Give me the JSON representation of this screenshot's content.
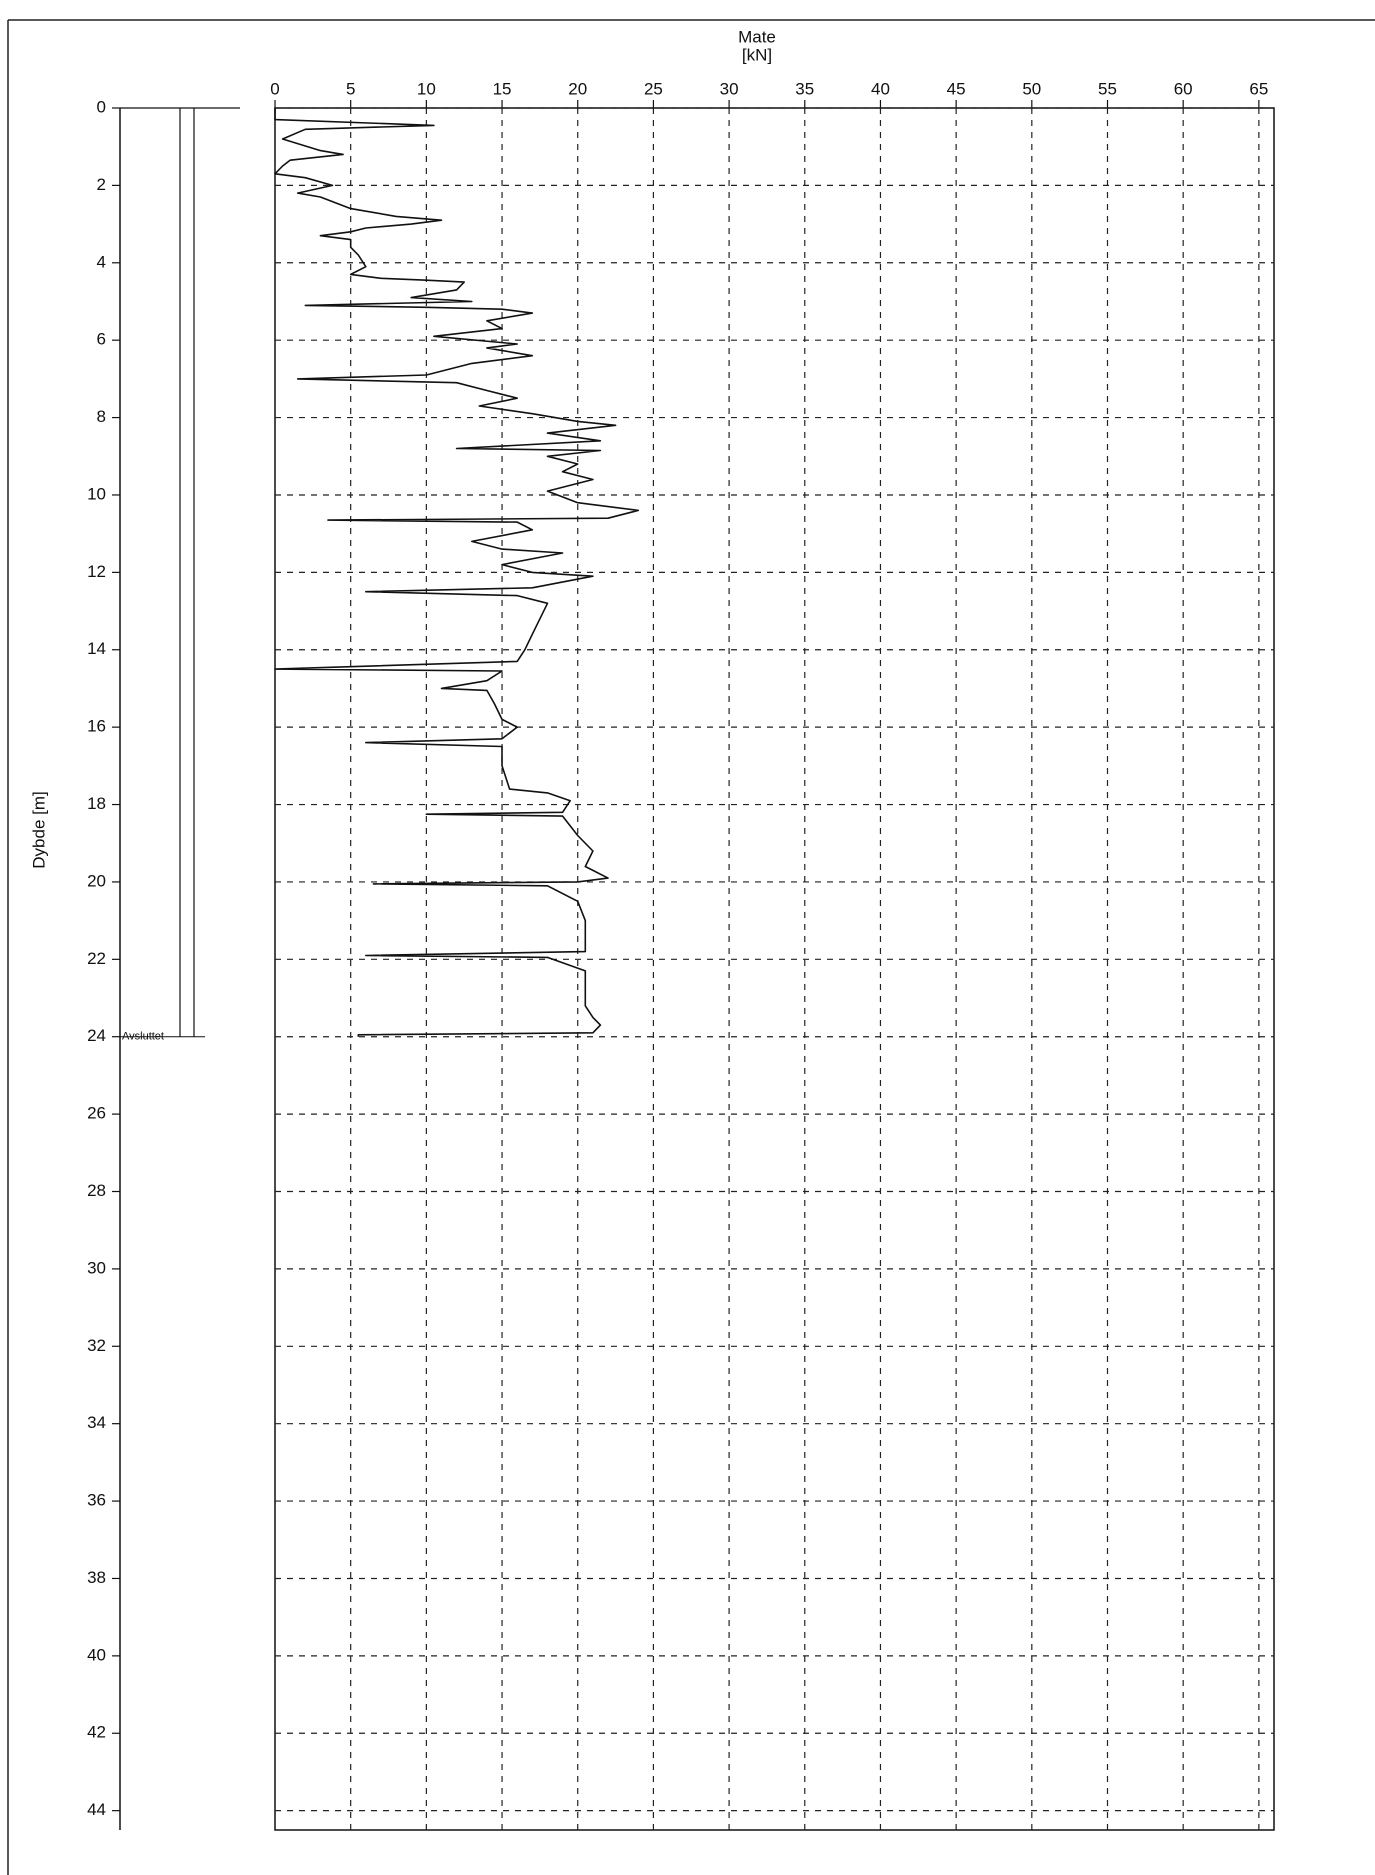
{
  "chart_data": {
    "type": "line",
    "title": "Mate",
    "x_unit": "[kN]",
    "y_label": "Dybde [m]",
    "annotation": "Avsluttet",
    "end_depth": 24,
    "color": "#111111",
    "grid": true,
    "y_inverted": true,
    "xlim": [
      0,
      66
    ],
    "xticks": [
      0,
      5,
      10,
      15,
      20,
      25,
      30,
      35,
      40,
      45,
      50,
      55,
      60,
      65
    ],
    "ylim": [
      0,
      44.5
    ],
    "yticks": [
      0,
      2,
      4,
      6,
      8,
      10,
      12,
      14,
      16,
      18,
      20,
      22,
      24,
      26,
      28,
      30,
      32,
      34,
      36,
      38,
      40,
      42,
      44
    ],
    "depth": [
      0,
      0.3,
      0.45,
      0.55,
      0.8,
      1.1,
      1.2,
      1.35,
      1.5,
      1.7,
      1.8,
      2.0,
      2.2,
      2.3,
      2.6,
      2.8,
      2.9,
      3.0,
      3.1,
      3.2,
      3.3,
      3.4,
      3.6,
      3.8,
      4.1,
      4.3,
      4.4,
      4.45,
      4.5,
      4.7,
      4.9,
      5.0,
      5.1,
      5.15,
      5.2,
      5.3,
      5.5,
      5.7,
      5.9,
      6.1,
      6.2,
      6.4,
      6.6,
      6.9,
      7.0,
      7.1,
      7.3,
      7.5,
      7.7,
      7.9,
      8.1,
      8.2,
      8.4,
      8.6,
      8.8,
      8.85,
      9.0,
      9.2,
      9.4,
      9.6,
      9.9,
      10.2,
      10.4,
      10.6,
      10.65,
      10.7,
      10.9,
      11.2,
      11.4,
      11.5,
      11.8,
      12.0,
      12.1,
      12.4,
      12.5,
      12.6,
      12.8,
      13.2,
      13.6,
      14.0,
      14.3,
      14.5,
      14.55,
      14.8,
      15.0,
      15.05,
      15.4,
      15.8,
      16.0,
      16.3,
      16.4,
      16.5,
      17.0,
      17.6,
      17.7,
      17.9,
      18.2,
      18.25,
      18.3,
      18.8,
      19.2,
      19.6,
      19.9,
      20.0,
      20.05,
      20.1,
      20.5,
      21.0,
      21.5,
      21.8,
      21.9,
      21.95,
      22.3,
      22.8,
      23.2,
      23.5,
      23.7,
      23.9,
      23.95,
      24.0
    ],
    "values": [
      0,
      0,
      10.5,
      2,
      0.5,
      3,
      4.5,
      1,
      0.5,
      0,
      2,
      3.8,
      1.5,
      3,
      5,
      8,
      11,
      9,
      6,
      5,
      3,
      5,
      5,
      5.5,
      6,
      5,
      7,
      10,
      12.5,
      12,
      9,
      13,
      2,
      10,
      15,
      17,
      14,
      15,
      10.5,
      16,
      14,
      17,
      13,
      10,
      1.5,
      12,
      14,
      16,
      13.5,
      17,
      20,
      22.5,
      18,
      21.5,
      12,
      21.5,
      18,
      20,
      19,
      21,
      18,
      20,
      24,
      22,
      3.5,
      16,
      17,
      13,
      15,
      19,
      15,
      17,
      21,
      17,
      6,
      16,
      18,
      17.5,
      17,
      16.5,
      16,
      0,
      15,
      14,
      11,
      14,
      14.5,
      15,
      16,
      15,
      6,
      15,
      15,
      15.5,
      18,
      19.5,
      19,
      10,
      19,
      20,
      21,
      20.5,
      22,
      20,
      6.5,
      18,
      20,
      20.5,
      20.5,
      20.5,
      6,
      18,
      20.5,
      20.5,
      20.5,
      21,
      21.5,
      21,
      5.5,
      5.5
    ]
  }
}
